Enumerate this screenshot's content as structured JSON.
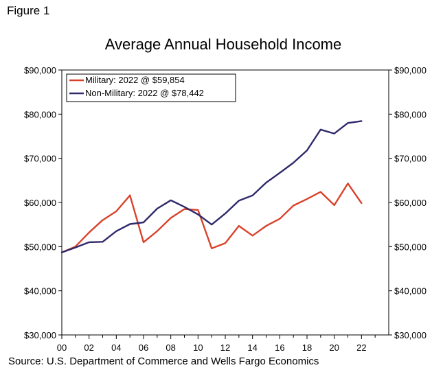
{
  "figure_label": "Figure 1",
  "source": "Source: U.S. Department of Commerce and Wells Fargo Economics",
  "chart_data": {
    "type": "line",
    "title": "Average Annual Household Income",
    "xlabel": "",
    "ylabel": "",
    "x": [
      2000,
      2001,
      2002,
      2003,
      2004,
      2005,
      2006,
      2007,
      2008,
      2009,
      2010,
      2011,
      2012,
      2013,
      2014,
      2015,
      2016,
      2017,
      2018,
      2019,
      2020,
      2021,
      2022
    ],
    "x_tick_labels": [
      "00",
      "02",
      "04",
      "06",
      "08",
      "10",
      "12",
      "14",
      "16",
      "18",
      "20",
      "22"
    ],
    "x_ticks": [
      2000,
      2002,
      2004,
      2006,
      2008,
      2010,
      2012,
      2014,
      2016,
      2018,
      2020,
      2022
    ],
    "xlim": [
      2000,
      2024
    ],
    "ylim": [
      30000,
      90000
    ],
    "y_ticks": [
      30000,
      40000,
      50000,
      60000,
      70000,
      80000,
      90000
    ],
    "y_tick_labels": [
      "$30,000",
      "$40,000",
      "$50,000",
      "$60,000",
      "$70,000",
      "$80,000",
      "$90,000"
    ],
    "grid": false,
    "legend_position": "top-left",
    "series": [
      {
        "name": "Military: 2022 @ $59,854",
        "color": "#d9412a",
        "values": [
          48700,
          50000,
          53200,
          56000,
          58000,
          61600,
          51000,
          53500,
          56500,
          58500,
          58300,
          49600,
          50800,
          54700,
          52500,
          54700,
          56300,
          59300,
          60800,
          62400,
          59400,
          64300,
          59854
        ]
      },
      {
        "name": "Non-Military: 2022 @ $78,442",
        "color": "#2f2a6b",
        "values": [
          48700,
          49800,
          51000,
          51100,
          53500,
          55100,
          55500,
          58600,
          60500,
          59000,
          57300,
          55000,
          57500,
          60400,
          61600,
          64500,
          66700,
          69000,
          71800,
          76500,
          75600,
          78000,
          78442
        ]
      }
    ]
  }
}
